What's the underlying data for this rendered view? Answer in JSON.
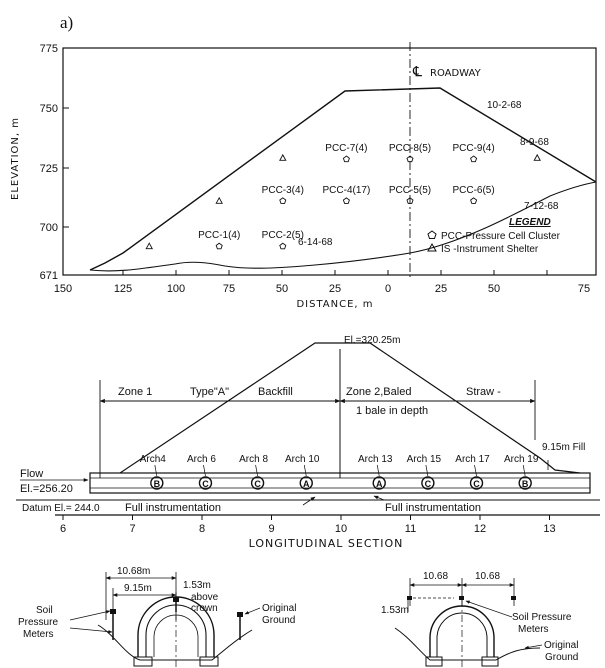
{
  "panel_label": "a)",
  "top_plot": {
    "y_axis_label": "ELEVATION, m",
    "x_axis_label": "DISTANCE, m",
    "y_ticks": [
      "775",
      "750",
      "725",
      "700",
      "671"
    ],
    "x_ticks": [
      "150",
      "125",
      "100",
      "75",
      "50",
      "25",
      "0",
      "25",
      "50",
      "75"
    ],
    "centerline_label": "ROADWAY",
    "dates": {
      "d1": "10-2-68",
      "d2": "8-9-68",
      "d3": "7-12-68",
      "d4": "6-14-68"
    },
    "clusters": [
      {
        "label": "PCC-7(4)",
        "x": -30,
        "y": 728.5
      },
      {
        "label": "PCC-8(5)",
        "x": 0,
        "y": 728.5
      },
      {
        "label": "PCC-9(4)",
        "x": 30,
        "y": 728.5
      },
      {
        "label": "PCC-3(4)",
        "x": -60,
        "y": 711
      },
      {
        "label": "PCC-4(17)",
        "x": -30,
        "y": 711
      },
      {
        "label": "PCC-5(5)",
        "x": 0,
        "y": 711
      },
      {
        "label": "PCC-6(5)",
        "x": 30,
        "y": 711
      },
      {
        "label": "PCC-1(4)",
        "x": -90,
        "y": 692
      },
      {
        "label": "PCC-2(5)",
        "x": -60,
        "y": 692
      }
    ],
    "shelters": [
      {
        "x": -123,
        "y": 692
      },
      {
        "x": -90,
        "y": 711
      },
      {
        "x": -60,
        "y": 729
      },
      {
        "x": 60,
        "y": 729
      }
    ],
    "legend": {
      "title": "LEGEND",
      "pcc": "PCC-Pressure Cell Cluster",
      "is": "IS -Instrument Shelter"
    }
  },
  "long_section": {
    "crest_elevation": "El.=320.25m",
    "zone1": {
      "w1": "Zone 1",
      "w2": "Type\"A\"",
      "w3": "Backfill"
    },
    "zone2": {
      "line1": "Zone 2,Baled",
      "straw": "Straw -",
      "line2": "1 bale in depth"
    },
    "fill_label": "9.15m Fill",
    "flow_label": "Flow",
    "flow_elevation": "El.=256.20",
    "datum": "Datum El.= 244.0",
    "full_instr_left": "Full instrumentation",
    "full_instr_right": "Full instrumentation",
    "x_ticks": [
      "6",
      "7",
      "8",
      "9",
      "10",
      "11",
      "12",
      "13",
      "14"
    ],
    "title": "LONGITUDINAL SECTION",
    "arches": [
      {
        "label": "Arch4",
        "x": 7.35,
        "marker": "B"
      },
      {
        "label": "Arch 6",
        "x": 8.05,
        "marker": "C"
      },
      {
        "label": "Arch 8",
        "x": 8.8,
        "marker": "C"
      },
      {
        "label": "Arch 10",
        "x": 9.5,
        "marker": "A"
      },
      {
        "label": "Arch 13",
        "x": 10.55,
        "marker": "A"
      },
      {
        "label": "Arch 15",
        "x": 11.25,
        "marker": "C"
      },
      {
        "label": "Arch 17",
        "x": 11.95,
        "marker": "C"
      },
      {
        "label": "Arch 19",
        "x": 12.65,
        "marker": "B"
      }
    ]
  },
  "cross_left": {
    "dim_outer": "10.68m",
    "dim_inner": "9.15m",
    "depth": "1.53m",
    "depth_note_1": "above",
    "depth_note_2": "crown",
    "soil_1": "Soil",
    "soil_2": "Pressure",
    "soil_3": "Meters",
    "ground_1": "Original",
    "ground_2": "Ground"
  },
  "cross_right": {
    "dim_left": "10.68",
    "dim_right": "10.68",
    "depth": "1.53m",
    "soil_1": "Soil Pressure",
    "soil_2": "Meters",
    "ground_1": "Original",
    "ground_2": "Ground"
  }
}
